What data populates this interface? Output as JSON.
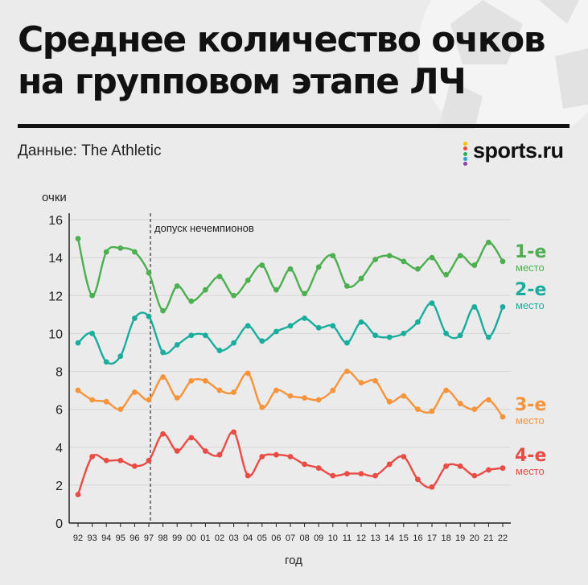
{
  "header": {
    "title_line1": "Среднее количество очков",
    "title_line2": "на групповом этапе ЛЧ",
    "source": "Данные: The Athletic",
    "logo": "sports.ru",
    "logo_dot_colors": [
      "#f5c400",
      "#e64a3c",
      "#2cb05c",
      "#2a9fd6",
      "#8e44ad"
    ]
  },
  "chart_data": {
    "type": "line",
    "ylabel": "очки",
    "xlabel": "год",
    "ylim": [
      0,
      16
    ],
    "yticks": [
      0,
      2,
      4,
      6,
      8,
      10,
      12,
      14,
      16
    ],
    "categories": [
      "92",
      "93",
      "94",
      "95",
      "96",
      "97",
      "98",
      "99",
      "00",
      "01",
      "02",
      "03",
      "04",
      "05",
      "06",
      "07",
      "08",
      "09",
      "10",
      "11",
      "12",
      "13",
      "14",
      "15",
      "16",
      "17",
      "18",
      "19",
      "20",
      "21",
      "22"
    ],
    "annotation": {
      "label": "допуск нечемпионов",
      "at_category": "97"
    },
    "series": [
      {
        "name": "1-е",
        "sublabel": "место",
        "color": "#4caf50",
        "values": [
          15.0,
          12.0,
          14.3,
          14.5,
          14.3,
          13.2,
          11.2,
          12.5,
          11.7,
          12.3,
          13.0,
          12.0,
          12.8,
          13.6,
          12.3,
          13.4,
          12.1,
          13.5,
          14.1,
          12.5,
          12.9,
          13.9,
          14.1,
          13.8,
          13.4,
          14.0,
          13.1,
          14.1,
          13.6,
          14.8,
          13.8
        ]
      },
      {
        "name": "2-е",
        "sublabel": "место",
        "color": "#1aad9e",
        "values": [
          9.5,
          10.0,
          8.5,
          8.8,
          10.8,
          10.9,
          9.0,
          9.4,
          9.9,
          9.9,
          9.1,
          9.5,
          10.4,
          9.6,
          10.1,
          10.4,
          10.8,
          10.3,
          10.4,
          9.5,
          10.6,
          9.9,
          9.8,
          10.0,
          10.6,
          11.6,
          10.0,
          9.9,
          11.4,
          9.8,
          11.4
        ]
      },
      {
        "name": "3-е",
        "sublabel": "место",
        "color": "#f5943b",
        "values": [
          7.0,
          6.5,
          6.4,
          6.0,
          6.9,
          6.5,
          7.7,
          6.6,
          7.5,
          7.5,
          7.0,
          6.9,
          7.9,
          6.1,
          7.0,
          6.7,
          6.6,
          6.5,
          7.0,
          8.0,
          7.4,
          7.5,
          6.4,
          6.7,
          6.0,
          5.9,
          7.0,
          6.3,
          6.0,
          6.5,
          5.6
        ]
      },
      {
        "name": "4-е",
        "sublabel": "место",
        "color": "#e84c45",
        "values": [
          1.5,
          3.5,
          3.3,
          3.3,
          3.0,
          3.3,
          4.7,
          3.8,
          4.5,
          3.8,
          3.6,
          4.8,
          2.5,
          3.5,
          3.6,
          3.5,
          3.1,
          2.9,
          2.5,
          2.6,
          2.6,
          2.5,
          3.1,
          3.5,
          2.3,
          1.9,
          3.0,
          3.0,
          2.5,
          2.8,
          2.9
        ]
      }
    ]
  }
}
